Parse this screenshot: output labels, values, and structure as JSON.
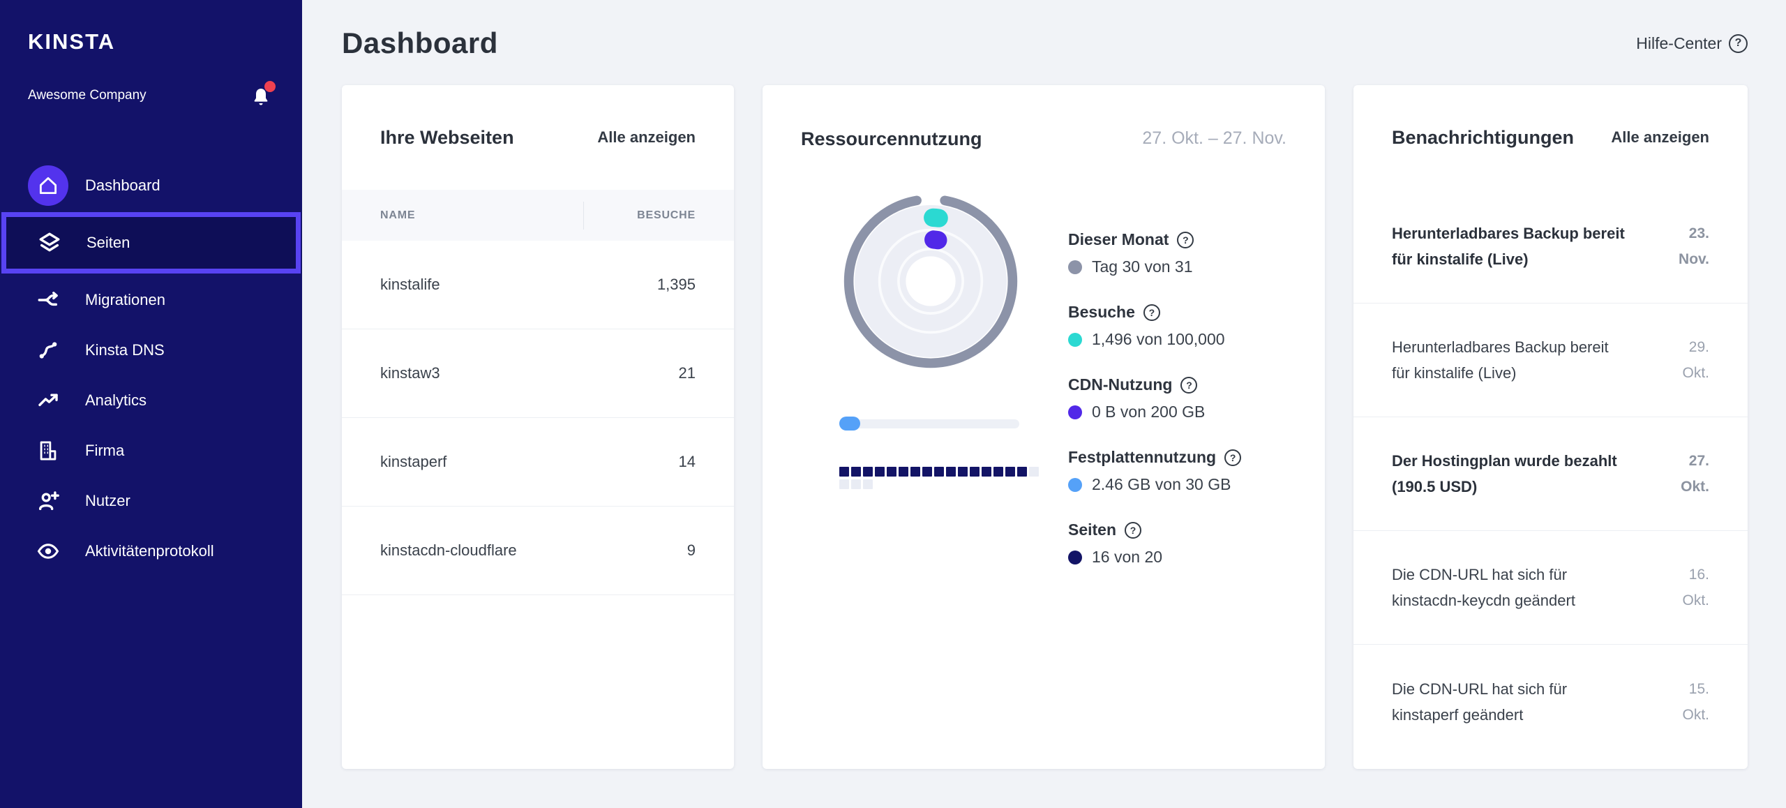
{
  "sidebar": {
    "logo": "KINSTA",
    "company": "Awesome Company",
    "items": [
      {
        "label": "Dashboard",
        "icon": "home-icon",
        "selected": false
      },
      {
        "label": "Seiten",
        "icon": "layers-icon",
        "selected": true
      },
      {
        "label": "Migrationen",
        "icon": "split-icon",
        "selected": false
      },
      {
        "label": "Kinsta DNS",
        "icon": "route-icon",
        "selected": false
      },
      {
        "label": "Analytics",
        "icon": "trending-up-icon",
        "selected": false
      },
      {
        "label": "Firma",
        "icon": "building-icon",
        "selected": false
      },
      {
        "label": "Nutzer",
        "icon": "user-plus-icon",
        "selected": false
      },
      {
        "label": "Aktivitätenprotokoll",
        "icon": "eye-icon",
        "selected": false
      }
    ]
  },
  "header": {
    "title": "Dashboard",
    "help_label": "Hilfe-Center"
  },
  "websites_card": {
    "title": "Ihre Webseiten",
    "view_all": "Alle anzeigen",
    "columns": {
      "name": "NAME",
      "visits": "BESUCHE"
    },
    "rows": [
      {
        "name": "kinstalife",
        "visits": "1,395"
      },
      {
        "name": "kinstaw3",
        "visits": "21"
      },
      {
        "name": "kinstaperf",
        "visits": "14"
      },
      {
        "name": "kinstacdn-cloudflare",
        "visits": "9"
      }
    ]
  },
  "resources_card": {
    "title": "Ressourcennutzung",
    "date_range": "27. Okt. – 27. Nov.",
    "usage": {
      "day": {
        "label": "Dieser Monat",
        "value_text": "Tag 30 von 31",
        "current": 30,
        "total": 31,
        "color": "#8C93A8"
      },
      "visits": {
        "label": "Besuche",
        "value_text": "1,496 von 100,000",
        "used": 1496,
        "limit": 100000,
        "color": "#2BD9D2"
      },
      "cdn": {
        "label": "CDN-Nutzung",
        "value_text": "0 B von 200 GB",
        "used": 0,
        "limit": 200,
        "color": "#5128E8"
      },
      "disk": {
        "label": "Festplattennutzung",
        "value_text": "2.46 GB von 30 GB",
        "used": 2.46,
        "limit": 30,
        "color": "#55A1F8"
      },
      "sites": {
        "label": "Seiten",
        "value_text": "16 von 20",
        "used": 16,
        "total": 20,
        "color": "#131466"
      }
    }
  },
  "notifications_card": {
    "title": "Benachrichtigungen",
    "view_all": "Alle anzeigen",
    "items": [
      {
        "text": "Herunterladbares Backup bereit für kinstalife (Live)",
        "date": "23. Nov.",
        "unread": true
      },
      {
        "text": "Herunterladbares Backup bereit für kinstalife (Live)",
        "date": "29. Okt.",
        "unread": false
      },
      {
        "text": "Der Hostingplan wurde bezahlt (190.5 USD)",
        "date": "27. Okt.",
        "unread": true
      },
      {
        "text": "Die CDN-URL hat sich für kinstacdn-keycdn geändert",
        "date": "16. Okt.",
        "unread": false
      },
      {
        "text": "Die CDN-URL hat sich für kinstaperf geändert",
        "date": "15. Okt.",
        "unread": false
      }
    ]
  },
  "colors": {
    "sidebar_bg": "#131269",
    "brand_purple": "#5333ED",
    "selection_border": "#5843F2",
    "notification_red": "#EE4150",
    "main_bg": "#F1F3F7"
  }
}
